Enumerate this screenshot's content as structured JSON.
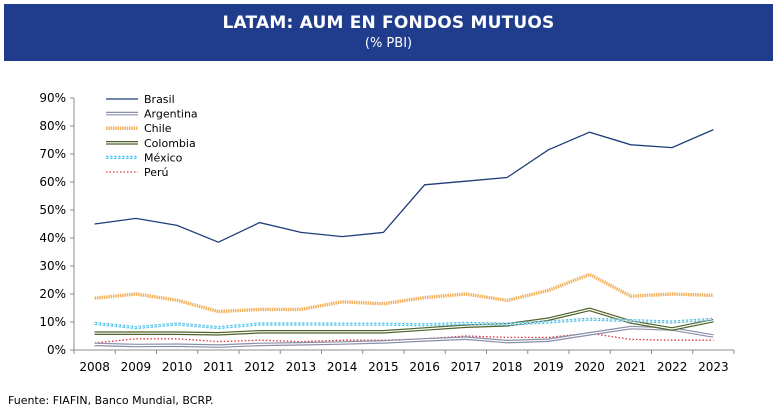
{
  "header": {
    "title": "LATAM: AUM EN FONDOS MUTUOS",
    "subtitle": "(% PBI)"
  },
  "source": "Fuente: FIAFIN, Banco Mundial, BCRP.",
  "colors": {
    "header_bg": "#1f3d8c"
  },
  "chart_data": {
    "type": "line",
    "title": "LATAM: AUM EN FONDOS MUTUOS",
    "subtitle": "(% PBI)",
    "x": [
      "2008",
      "2009",
      "2010",
      "2011",
      "2012",
      "2013",
      "2014",
      "2015",
      "2016",
      "2017",
      "2018",
      "2019",
      "2020",
      "2021",
      "2022",
      "2023"
    ],
    "ylim": [
      0,
      90
    ],
    "yticks": [
      "0%",
      "10%",
      "20%",
      "30%",
      "40%",
      "50%",
      "60%",
      "70%",
      "80%",
      "90%"
    ],
    "legend_position": "top-left",
    "grid": false,
    "series": [
      {
        "name": "Brasil",
        "color": "#1f3d7a",
        "style": "solid",
        "values": [
          45,
          47,
          44.5,
          38.5,
          45.5,
          42,
          40.5,
          42,
          59,
          60.3,
          61.6,
          71.5,
          77.8,
          73.3,
          72.3,
          78.7
        ]
      },
      {
        "name": "Argentina",
        "color": "#8a8fa8",
        "style": "double",
        "values": [
          2,
          1.6,
          1.7,
          1.4,
          2,
          2.2,
          2.5,
          2.9,
          3.6,
          4.2,
          3,
          3.5,
          5.8,
          8,
          7.5,
          5
        ]
      },
      {
        "name": "Chile",
        "color": "#f2b15e",
        "style": "thick",
        "values": [
          18.5,
          20,
          17.8,
          13.7,
          14.5,
          14.5,
          17.2,
          16.5,
          18.7,
          20,
          17.7,
          21.3,
          27,
          19.2,
          20,
          19.5
        ]
      },
      {
        "name": "Colombia",
        "color": "#4f6228",
        "style": "double",
        "values": [
          6,
          6,
          6,
          5.8,
          6.5,
          6.5,
          6.5,
          6.5,
          7.5,
          8.5,
          9,
          11,
          14.5,
          10,
          7.5,
          10.5
        ]
      },
      {
        "name": "México",
        "color": "#5bc4e8",
        "style": "diamond",
        "values": [
          9.5,
          8,
          9.3,
          8,
          9.3,
          9.3,
          9.2,
          9.2,
          9,
          9.5,
          9.2,
          10,
          11,
          10.5,
          10,
          11
        ]
      },
      {
        "name": "Perú",
        "color": "#e0313a",
        "style": "dotted",
        "values": [
          2.5,
          4,
          4,
          3,
          3.5,
          3,
          3.5,
          3.5,
          4,
          5,
          4.5,
          4.5,
          6,
          3.8,
          3.5,
          3.5
        ]
      }
    ]
  }
}
